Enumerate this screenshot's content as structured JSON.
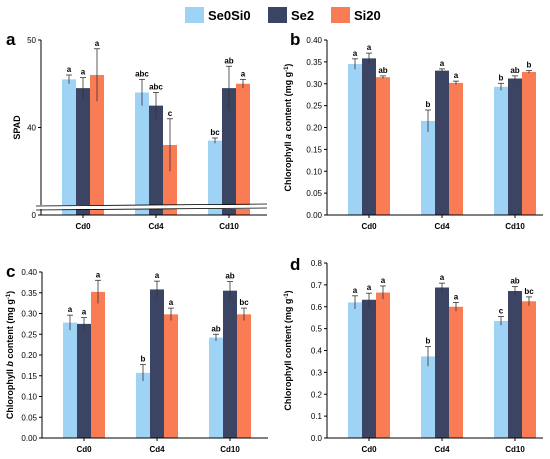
{
  "legend": [
    {
      "label": "Se0Si0",
      "color": "#9fd3f5"
    },
    {
      "label": "Se2",
      "color": "#3b4563"
    },
    {
      "label": "Si20",
      "color": "#f97c55"
    }
  ],
  "chart_data": [
    {
      "type": "bar",
      "panel": "a",
      "ylabel": "SPAD",
      "categories": [
        "Cd0",
        "Cd4",
        "Cd10"
      ],
      "ylim": [
        0,
        50
      ],
      "axis_break": true,
      "ticks": [
        "0",
        "40",
        "50"
      ],
      "series": [
        {
          "name": "Se0Si0",
          "values": [
            45.5,
            44.0,
            38.5
          ],
          "errors": [
            0.5,
            1.5,
            0.3
          ],
          "letters": [
            "a",
            "abc",
            "bc"
          ]
        },
        {
          "name": "Se2",
          "values": [
            44.5,
            42.5,
            44.5
          ],
          "errors": [
            1.2,
            1.5,
            2.5
          ],
          "letters": [
            "a",
            "abc",
            "ab"
          ]
        },
        {
          "name": "Si20",
          "values": [
            46.0,
            38.0,
            45.0
          ],
          "errors": [
            3.0,
            3.0,
            0.5
          ],
          "letters": [
            "a",
            "c",
            "a"
          ]
        }
      ]
    },
    {
      "type": "bar",
      "panel": "b",
      "ylabel": "Chlorophyll a content (mg g-1)",
      "ylabel_parts": [
        "Chlorophyll ",
        "a",
        " content (mg g",
        "-1",
        ")"
      ],
      "categories": [
        "Cd0",
        "Cd4",
        "Cd10"
      ],
      "ylim": [
        0,
        0.4
      ],
      "ticks": [
        "0.00",
        "0.05",
        "0.10",
        "0.15",
        "0.20",
        "0.25",
        "0.30",
        "0.35",
        "0.40"
      ],
      "series": [
        {
          "name": "Se0Si0",
          "values": [
            0.345,
            0.215,
            0.293
          ],
          "errors": [
            0.012,
            0.025,
            0.008
          ],
          "letters": [
            "a",
            "b",
            "b"
          ]
        },
        {
          "name": "Se2",
          "values": [
            0.358,
            0.33,
            0.312
          ],
          "errors": [
            0.012,
            0.004,
            0.006
          ],
          "letters": [
            "a",
            "a",
            "ab"
          ]
        },
        {
          "name": "Si20",
          "values": [
            0.315,
            0.302,
            0.327
          ],
          "errors": [
            0.003,
            0.004,
            0.003
          ],
          "letters": [
            "ab",
            "a",
            "b"
          ]
        }
      ]
    },
    {
      "type": "bar",
      "panel": "c",
      "ylabel": "Chlorophyll b content (mg g-1)",
      "ylabel_parts": [
        "Chlorophyll ",
        "b",
        " content (mg g",
        "-1",
        ")"
      ],
      "categories": [
        "Cd0",
        "Cd4",
        "Cd10"
      ],
      "ylim": [
        0,
        0.4
      ],
      "ticks": [
        "0.00",
        "0.05",
        "0.10",
        "0.15",
        "0.20",
        "0.25",
        "0.30",
        "0.35",
        "0.40"
      ],
      "series": [
        {
          "name": "Se0Si0",
          "values": [
            0.278,
            0.157,
            0.242
          ],
          "errors": [
            0.018,
            0.02,
            0.008
          ],
          "letters": [
            "a",
            "b",
            "ab"
          ]
        },
        {
          "name": "Se2",
          "values": [
            0.275,
            0.358,
            0.355
          ],
          "errors": [
            0.015,
            0.02,
            0.022
          ],
          "letters": [
            "a",
            "a",
            "ab"
          ]
        },
        {
          "name": "Si20",
          "values": [
            0.352,
            0.298,
            0.298
          ],
          "errors": [
            0.028,
            0.015,
            0.015
          ],
          "letters": [
            "a",
            "a",
            "bc"
          ]
        }
      ]
    },
    {
      "type": "bar",
      "panel": "d",
      "ylabel": "Chlorophyll content (mg g-1)",
      "ylabel_parts": [
        "Chlorophyll content (mg g",
        "-1",
        ")"
      ],
      "categories": [
        "Cd0",
        "Cd4",
        "Cd10"
      ],
      "ylim": [
        0,
        0.8
      ],
      "ticks": [
        "0.0",
        "0.1",
        "0.2",
        "0.3",
        "0.4",
        "0.5",
        "0.6",
        "0.7",
        "0.8"
      ],
      "series": [
        {
          "name": "Se0Si0",
          "values": [
            0.62,
            0.373,
            0.535
          ],
          "errors": [
            0.03,
            0.045,
            0.02
          ],
          "letters": [
            "a",
            "b",
            "c"
          ]
        },
        {
          "name": "Se2",
          "values": [
            0.632,
            0.688,
            0.672
          ],
          "errors": [
            0.03,
            0.02,
            0.02
          ],
          "letters": [
            "a",
            "a",
            "ab"
          ]
        },
        {
          "name": "Si20",
          "values": [
            0.665,
            0.6,
            0.625
          ],
          "errors": [
            0.03,
            0.02,
            0.02
          ],
          "letters": [
            "a",
            "a",
            "bc"
          ]
        }
      ]
    }
  ]
}
